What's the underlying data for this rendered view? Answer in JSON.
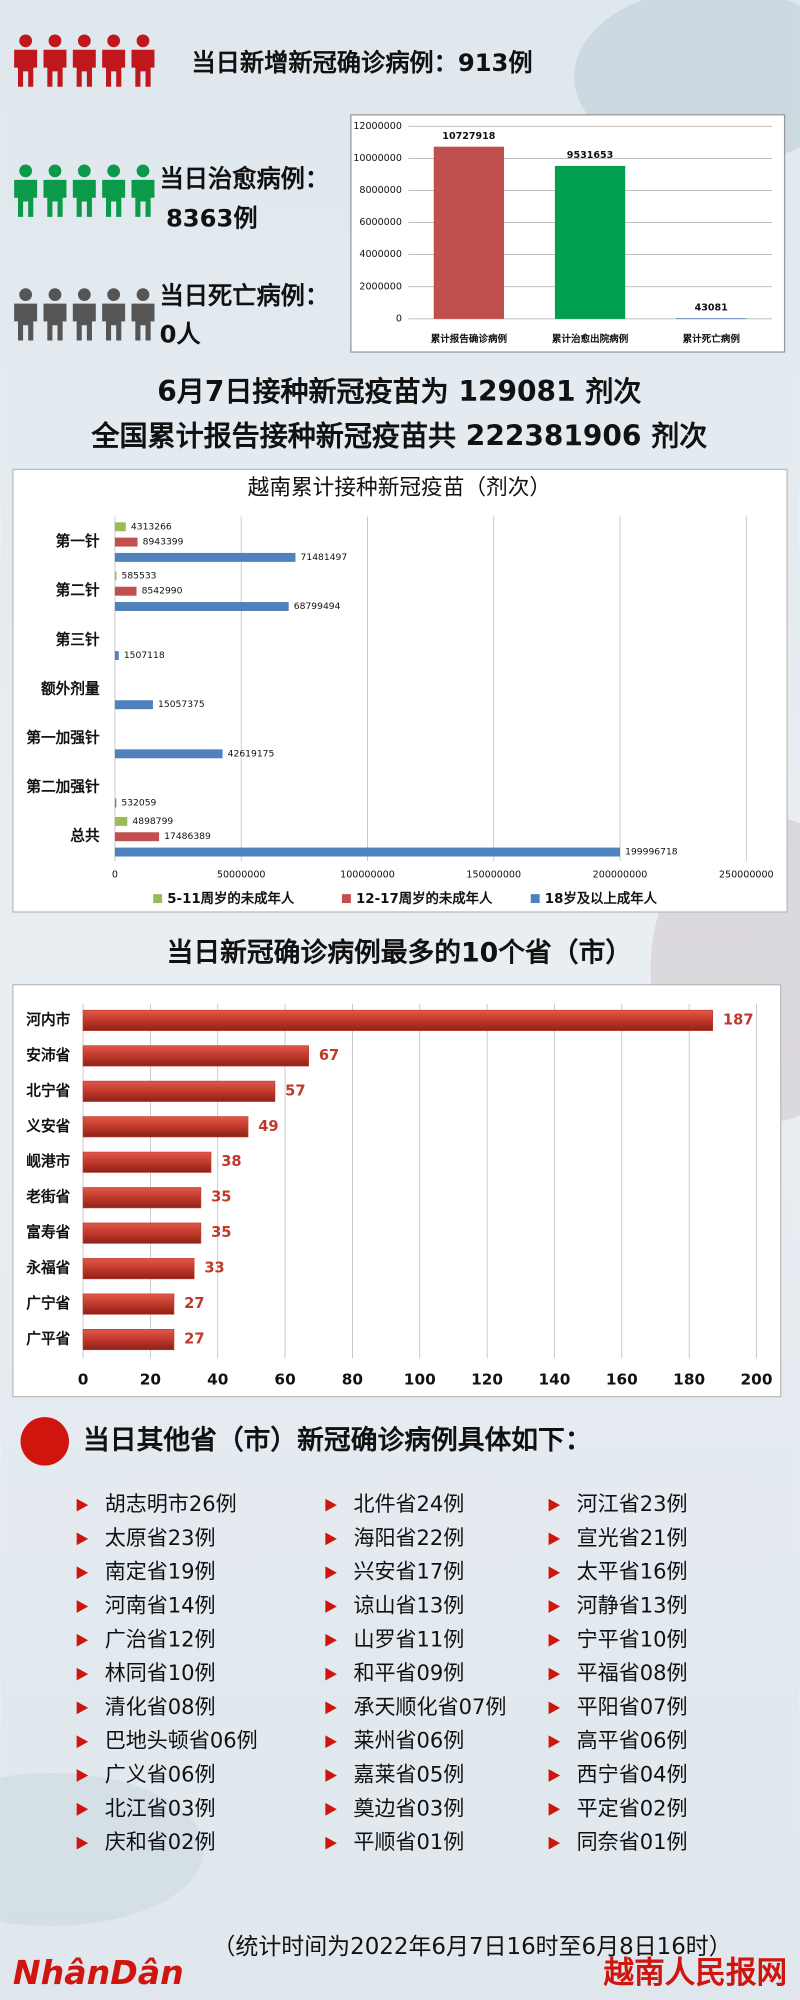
{
  "stats": {
    "new_cases": "当日新增新冠确诊病例：913例",
    "recovered_label": "当日治愈病例：",
    "recovered_value": "8363例",
    "deaths_label": "当日死亡病例：",
    "deaths_value": "0人"
  },
  "headline": [
    "6月7日接种新冠疫苗为 129081 剂次",
    "全国累计报告接种新冠疫苗共 222381906 剂次"
  ],
  "chart_data": [
    {
      "type": "bar",
      "categories": [
        "累计报告确诊病例",
        "累计治愈出院病例",
        "累计死亡病例"
      ],
      "values": [
        10727918,
        9531653,
        43081
      ],
      "colors": [
        "#c0504d",
        "#00a050",
        "#4f81bd"
      ],
      "ylim": [
        0,
        12000000
      ],
      "yticks": [
        0,
        2000000,
        4000000,
        6000000,
        8000000,
        10000000,
        12000000
      ],
      "grid": true
    },
    {
      "type": "bar",
      "orientation": "horizontal",
      "title": "越南累计接种新冠疫苗（剂次）",
      "categories": [
        "第一针",
        "第二针",
        "第三针",
        "额外剂量",
        "第一加强针",
        "第二加强针",
        "总共"
      ],
      "series": [
        {
          "name": "5-11周岁的未成年人",
          "color": "#9bbb59",
          "values": [
            4313266,
            585533,
            null,
            null,
            null,
            null,
            4898799
          ]
        },
        {
          "name": "12-17周岁的未成年人",
          "color": "#c0504d",
          "values": [
            8943399,
            8542990,
            null,
            null,
            null,
            null,
            17486389
          ]
        },
        {
          "name": "18岁及以上成年人",
          "color": "#4f81bd",
          "values": [
            71481497,
            68799494,
            1507118,
            15057375,
            42619175,
            532059,
            199996718
          ]
        }
      ],
      "xlim": [
        0,
        250000000
      ],
      "xticks": [
        0,
        50000000,
        100000000,
        150000000,
        200000000,
        250000000
      ],
      "grid": true,
      "legend": "bottom"
    },
    {
      "type": "bar",
      "orientation": "horizontal",
      "title": "当日新冠确诊病例最多的10个省（市）",
      "categories": [
        "河内市",
        "安沛省",
        "北宁省",
        "义安省",
        "岘港市",
        "老街省",
        "富寿省",
        "永福省",
        "广宁省",
        "广平省"
      ],
      "values": [
        187,
        67,
        57,
        49,
        38,
        35,
        35,
        33,
        27,
        27
      ],
      "color": "#c0392b",
      "xlim": [
        0,
        200
      ],
      "xticks": [
        0,
        20,
        40,
        60,
        80,
        100,
        120,
        140,
        160,
        180,
        200
      ],
      "grid": true
    }
  ],
  "other_provinces": {
    "title": "当日其他省（市）新冠确诊病例具体如下：",
    "items": [
      [
        "胡志明市26例",
        "北件省24例",
        "河江省23例"
      ],
      [
        "太原省23例",
        "海阳省22例",
        "宣光省21例"
      ],
      [
        "南定省19例",
        "兴安省17例",
        "太平省16例"
      ],
      [
        "河南省14例",
        "谅山省13例",
        "河静省13例"
      ],
      [
        "广治省12例",
        "山罗省11例",
        "宁平省10例"
      ],
      [
        "林同省10例",
        "和平省09例",
        "平福省08例"
      ],
      [
        "清化省08例",
        "承天顺化省07例",
        "平阳省07例"
      ],
      [
        "巴地头顿省06例",
        "莱州省06例",
        "高平省06例"
      ],
      [
        "广义省06例",
        "嘉莱省05例",
        "西宁省04例"
      ],
      [
        "北江省03例",
        "奠边省03例",
        "平定省02例"
      ],
      [
        "庆和省02例",
        "平顺省01例",
        "同奈省01例"
      ]
    ]
  },
  "note": "（统计时间为2022年6月7日16时至6月8日16时）",
  "logo": "NhânDân",
  "brand": "越南人民报网"
}
